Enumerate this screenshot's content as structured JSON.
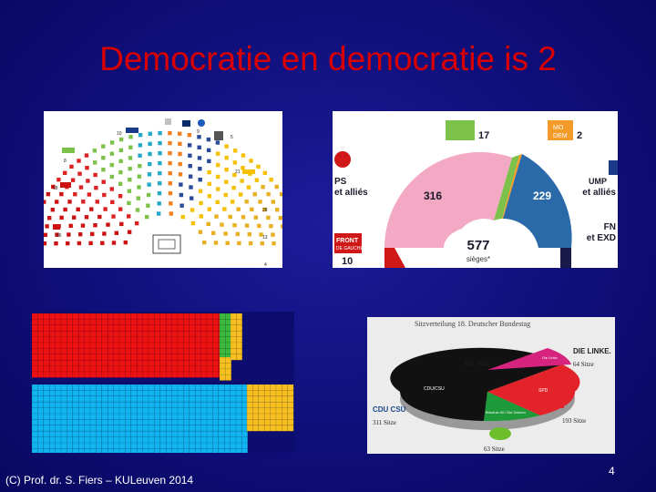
{
  "slide": {
    "title": "Democratie en democratie is 2",
    "footer": "(C) Prof. dr. S. Fiers – KULeuven 2014",
    "page_number": "4"
  },
  "colors": {
    "background": "#12128a",
    "title": "#d80000"
  },
  "panel_belgium": {
    "labels": [
      "10",
      "8",
      "18",
      "21",
      "26",
      "13",
      "4",
      "28",
      "5",
      "9"
    ]
  },
  "panel_france": {
    "total_value": "577",
    "total_label": "sièges*",
    "groups": [
      {
        "key": "ps",
        "label_line1": "PS",
        "label_line2": "et alliés",
        "seats": "316",
        "color": "#f3a8c4"
      },
      {
        "key": "ecologists",
        "label_line1": "",
        "label_line2": "",
        "seats": "17",
        "color": "#7cc24a"
      },
      {
        "key": "modem",
        "label_line1": "MO",
        "label_line2": "DEM",
        "seats": "2",
        "color": "#f39a28"
      },
      {
        "key": "ump",
        "label_line1": "UMP",
        "label_line2": "et alliés",
        "seats": "229",
        "color": "#2a6aa8"
      },
      {
        "key": "fn",
        "label_line1": "FN",
        "label_line2": "et EXD",
        "seats": "3",
        "color": "#1a1a4a"
      },
      {
        "key": "front-de-gauche",
        "label_line1": "FRONT",
        "label_line2": "DE GAUCHE",
        "seats": "10",
        "color": "#d01818"
      }
    ],
    "ump_logo_text": "UMP"
  },
  "panel_grid": {
    "red_color": "#ee1111",
    "blue_color": "#10b4f0",
    "yellow_color": "#f7c020",
    "green_color": "#3cb83c"
  },
  "panel_germany": {
    "title": "Sitzverteilung 18. Deutscher Bundestag",
    "total": "631 Sitze",
    "parties": [
      {
        "key": "cdu",
        "logo": "CDU CSU",
        "slice_label": "CDU/CSU",
        "seats": "311 Sitze",
        "color": "#111111"
      },
      {
        "key": "spd",
        "logo": "SPD",
        "slice_label": "SPD",
        "seats": "193 Sitze",
        "color": "#e2232a"
      },
      {
        "key": "linke",
        "logo": "DIE LINKE.",
        "slice_label": "Die Linke",
        "seats": "64 Sitze",
        "color": "#d6247e"
      },
      {
        "key": "gruene",
        "logo": "",
        "slice_label": "Bündnis 90 / Die Grünen",
        "seats": "63 Sitze",
        "color": "#1e9a3a"
      }
    ]
  }
}
